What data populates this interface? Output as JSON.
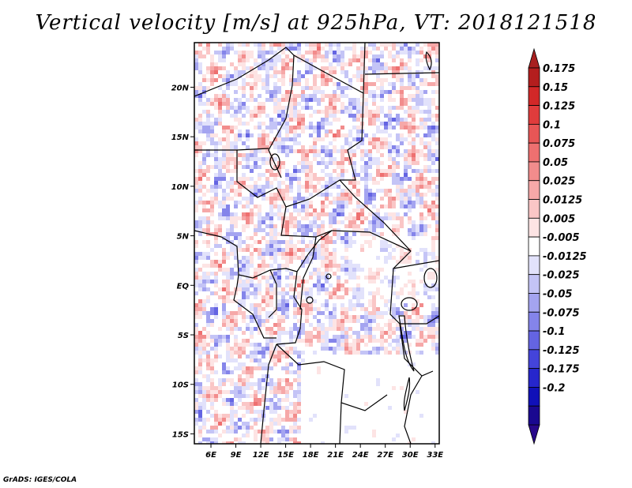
{
  "chart_data": {
    "type": "heatmap",
    "title": "Vertical velocity [m/s] at 925hPa, VT: 2018121518",
    "variable": "Vertical velocity",
    "units": "m/s",
    "level": "925hPa",
    "valid_time": "2018121518",
    "xlabel": "",
    "ylabel": "",
    "xlim": [
      4,
      33.5
    ],
    "ylim": [
      -16,
      24.5
    ],
    "x_ticks": [
      6,
      9,
      12,
      15,
      18,
      21,
      24,
      27,
      30,
      33
    ],
    "x_tick_labels": [
      "6E",
      "9E",
      "12E",
      "15E",
      "18E",
      "21E",
      "24E",
      "27E",
      "30E",
      "33E"
    ],
    "y_ticks": [
      20,
      15,
      10,
      5,
      0,
      -5,
      -10,
      -15
    ],
    "y_tick_labels": [
      "20N",
      "15N",
      "10N",
      "5N",
      "EQ",
      "5S",
      "10S",
      "15S"
    ],
    "colorbar": {
      "levels": [
        "0.175",
        "0.15",
        "0.125",
        "0.1",
        "0.075",
        "0.05",
        "0.025",
        "0.0125",
        "0.005",
        "-0.005",
        "-0.0125",
        "-0.025",
        "-0.05",
        "-0.075",
        "-0.1",
        "-0.125",
        "-0.175",
        "-0.2"
      ],
      "colors": [
        "#b41e1e",
        "#d22828",
        "#e03c3c",
        "#e85656",
        "#ee7070",
        "#f28c8c",
        "#f6a8a8",
        "#fac6c6",
        "#fde4e4",
        "#ffffff",
        "#e2e2fb",
        "#c4c4f6",
        "#a4a4f0",
        "#8484ea",
        "#6464e2",
        "#4444da",
        "#2626cc",
        "#1010b8",
        "#1a0890"
      ],
      "top_arrow_color": "#a82020",
      "bottom_arrow_color": "#28088a"
    },
    "map_region": "Central Africa",
    "legend_placement": "right"
  },
  "footer": "GrADS: IGES/COLA"
}
